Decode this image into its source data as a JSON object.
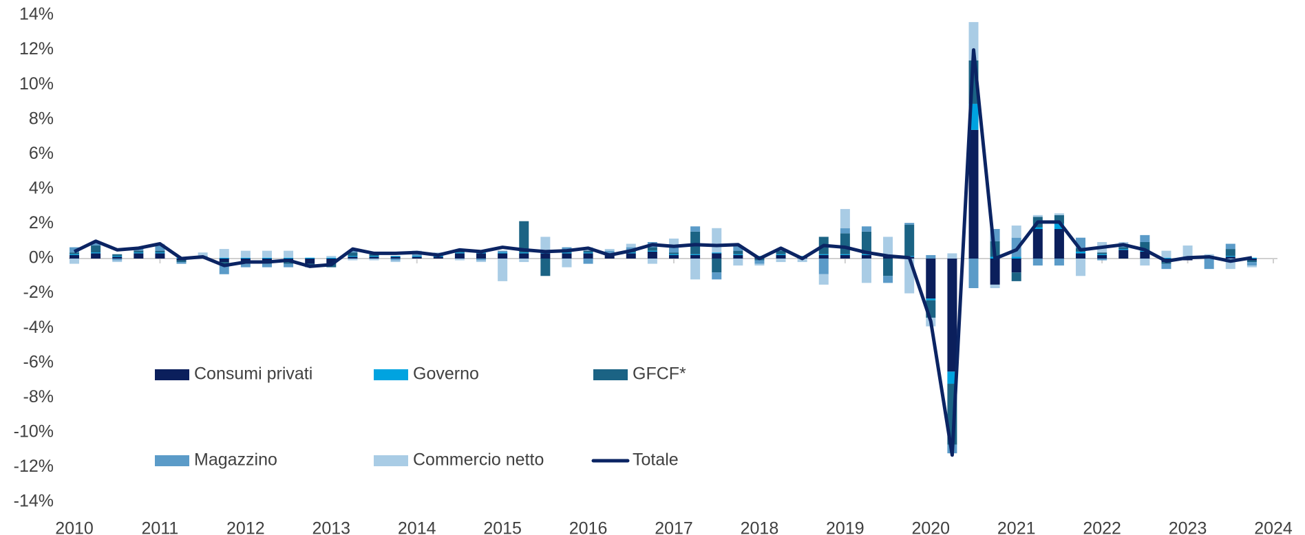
{
  "chart_data": {
    "type": "bar",
    "stacked": true,
    "x": [
      2010,
      2010.25,
      2010.5,
      2010.75,
      2011,
      2011.25,
      2011.5,
      2011.75,
      2012,
      2012.25,
      2012.5,
      2012.75,
      2013,
      2013.25,
      2013.5,
      2013.75,
      2014,
      2014.25,
      2014.5,
      2014.75,
      2015,
      2015.25,
      2015.5,
      2015.75,
      2016,
      2016.25,
      2016.5,
      2016.75,
      2017,
      2017.25,
      2017.5,
      2017.75,
      2018,
      2018.25,
      2018.5,
      2018.75,
      2019,
      2019.25,
      2019.5,
      2019.75,
      2020,
      2020.25,
      2020.5,
      2020.75,
      2021,
      2021.25,
      2021.5,
      2021.75,
      2022,
      2022.25,
      2022.5,
      2022.75,
      2023,
      2023.25,
      2023.5,
      2023.75
    ],
    "xlim": [
      2010,
      2024
    ],
    "xticks": [
      2010,
      2011,
      2012,
      2013,
      2014,
      2015,
      2016,
      2017,
      2018,
      2019,
      2020,
      2021,
      2022,
      2023,
      2024
    ],
    "ylim": [
      -14,
      14
    ],
    "yticks": [
      {
        "value": -14,
        "label": "-14%"
      },
      {
        "value": -12,
        "label": "-12%"
      },
      {
        "value": -10,
        "label": "-10%"
      },
      {
        "value": -8,
        "label": "-8%"
      },
      {
        "value": -6,
        "label": "-6%"
      },
      {
        "value": -4,
        "label": "-4%"
      },
      {
        "value": -2,
        "label": "-2%"
      },
      {
        "value": 0,
        "label": "0%"
      },
      {
        "value": 2,
        "label": "2%"
      },
      {
        "value": 4,
        "label": "4%"
      },
      {
        "value": 6,
        "label": "6%"
      },
      {
        "value": 8,
        "label": "8%"
      },
      {
        "value": 10,
        "label": "10%"
      },
      {
        "value": 12,
        "label": "12%"
      },
      {
        "value": 14,
        "label": "14%"
      }
    ],
    "legend": "lower left",
    "series": [
      {
        "name": "Consumi privati",
        "color": "#0b1f5c",
        "values": [
          0.2,
          0.3,
          0.1,
          0.3,
          0.3,
          -0.1,
          0.0,
          -0.2,
          -0.2,
          -0.2,
          -0.2,
          -0.3,
          -0.3,
          0.1,
          0.1,
          0.1,
          0.1,
          0.1,
          0.3,
          0.3,
          0.3,
          0.3,
          0.3,
          0.3,
          0.3,
          0.2,
          0.3,
          0.4,
          0.2,
          0.2,
          0.3,
          0.2,
          0.1,
          0.2,
          0.1,
          0.2,
          0.2,
          0.2,
          0.1,
          0.1,
          -2.3,
          -6.5,
          7.4,
          -1.5,
          -0.8,
          1.7,
          1.7,
          0.3,
          0.2,
          0.5,
          0.4,
          -0.2,
          -0.1,
          0.1,
          0.1,
          -0.1
        ]
      },
      {
        "name": "Governo",
        "color": "#00a3e0",
        "values": [
          0.05,
          0.05,
          0.05,
          0.05,
          0.05,
          0.05,
          0.05,
          0.05,
          0.05,
          0.05,
          0.05,
          0.05,
          0.05,
          0.05,
          0.05,
          0.05,
          0.05,
          0.05,
          0.05,
          0.05,
          0.05,
          0.05,
          0.05,
          0.05,
          0.05,
          0.05,
          0.05,
          0.05,
          0.05,
          0.05,
          0.05,
          0.05,
          0.05,
          0.05,
          0.05,
          0.05,
          0.05,
          0.05,
          0.05,
          0.05,
          -0.1,
          -0.7,
          1.5,
          0.1,
          0.1,
          0.1,
          0.3,
          0.1,
          0.05,
          0.05,
          0.05,
          0.05,
          0.05,
          0.05,
          0.05,
          0.05
        ]
      },
      {
        "name": "GFCF*",
        "color": "#1b6384",
        "values": [
          0.1,
          0.4,
          0.1,
          0.1,
          0.1,
          -0.1,
          0.0,
          -0.2,
          -0.1,
          -0.1,
          -0.1,
          -0.1,
          -0.2,
          0.2,
          0.1,
          0.0,
          0.0,
          0.1,
          0.1,
          0.0,
          0.0,
          1.8,
          -1.0,
          0.1,
          0.1,
          0.0,
          0.1,
          0.2,
          0.1,
          1.3,
          -0.8,
          0.2,
          -0.1,
          0.2,
          0.0,
          1.0,
          1.2,
          1.3,
          -1.0,
          1.8,
          -1.0,
          -3.5,
          2.5,
          0.9,
          -0.5,
          0.6,
          0.5,
          0.2,
          0.1,
          0.1,
          0.5,
          -0.1,
          0.0,
          0.0,
          0.4,
          -0.1
        ]
      },
      {
        "name": "Magazzino",
        "color": "#5b9bc8",
        "values": [
          0.3,
          0.2,
          -0.1,
          0.2,
          0.3,
          -0.1,
          0.1,
          -0.5,
          -0.2,
          -0.2,
          -0.2,
          -0.1,
          0.0,
          0.1,
          0.0,
          -0.1,
          0.1,
          0.0,
          0.0,
          -0.1,
          0.1,
          0.0,
          0.1,
          0.2,
          -0.3,
          0.2,
          0.2,
          0.3,
          0.3,
          0.3,
          -0.4,
          0.3,
          -0.2,
          0.1,
          0.0,
          -0.9,
          0.3,
          0.3,
          -0.4,
          0.1,
          0.2,
          -0.5,
          -1.7,
          0.7,
          1.1,
          -0.4,
          -0.4,
          0.6,
          -0.1,
          0.2,
          0.4,
          -0.3,
          0.0,
          -0.6,
          0.3,
          -0.2
        ]
      },
      {
        "name": "Commercio netto",
        "color": "#a9cce5",
        "values": [
          -0.3,
          0.0,
          -0.1,
          0.0,
          0.1,
          0.0,
          0.2,
          0.5,
          0.4,
          0.4,
          0.4,
          0.0,
          0.1,
          -0.1,
          -0.1,
          -0.1,
          0.2,
          0.1,
          -0.1,
          -0.1,
          -1.3,
          -0.2,
          0.8,
          -0.5,
          0.2,
          0.1,
          0.2,
          -0.3,
          0.5,
          -1.2,
          1.4,
          -0.4,
          -0.1,
          -0.2,
          -0.2,
          -0.6,
          1.1,
          -1.4,
          1.1,
          -2.0,
          -0.5,
          0.3,
          2.2,
          -0.2,
          0.7,
          0.1,
          0.1,
          -1.0,
          0.6,
          0.1,
          -0.4,
          0.4,
          0.7,
          0.1,
          -0.6,
          -0.1
        ]
      },
      {
        "name": "Totale",
        "type": "line",
        "color": "#0b2463",
        "values": [
          0.4,
          1.0,
          0.5,
          0.6,
          0.85,
          0.0,
          0.1,
          -0.4,
          -0.2,
          -0.2,
          -0.1,
          -0.45,
          -0.35,
          0.55,
          0.3,
          0.3,
          0.35,
          0.2,
          0.5,
          0.4,
          0.65,
          0.5,
          0.4,
          0.45,
          0.6,
          0.2,
          0.45,
          0.8,
          0.7,
          0.8,
          0.75,
          0.8,
          0.0,
          0.6,
          0.0,
          0.75,
          0.65,
          0.35,
          0.15,
          0.05,
          -3.6,
          -11.3,
          12.0,
          0.0,
          0.5,
          2.1,
          2.1,
          0.5,
          0.65,
          0.8,
          0.5,
          -0.15,
          0.05,
          0.1,
          -0.15,
          0.05
        ]
      }
    ]
  }
}
